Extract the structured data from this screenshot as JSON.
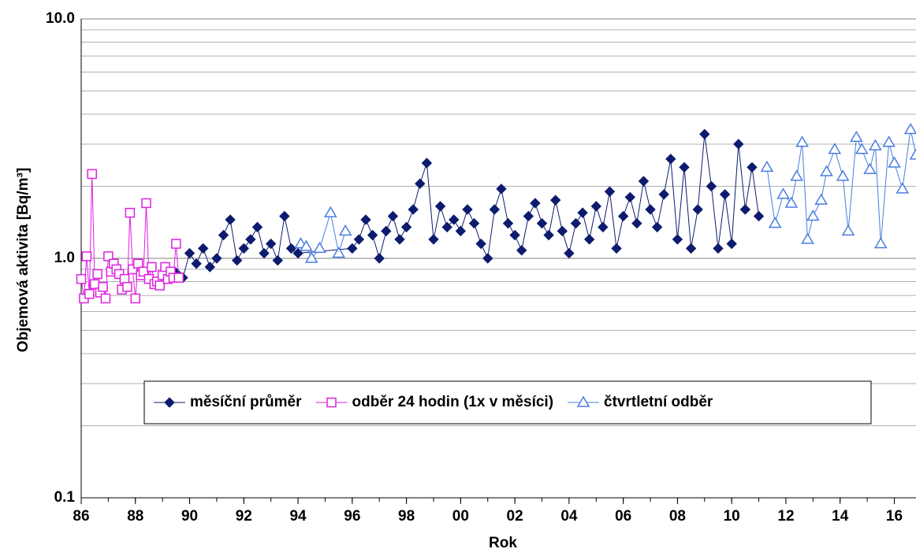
{
  "chart_data": {
    "type": "line",
    "xlabel": "Rok",
    "ylabel": "Objemová aktivita [Bq/m³]",
    "log_y": true,
    "grid": true,
    "xlim": [
      1986,
      2016.8
    ],
    "xticks": [
      {
        "value": 1986,
        "label": "86"
      },
      {
        "value": 1988,
        "label": "88"
      },
      {
        "value": 1990,
        "label": "90"
      },
      {
        "value": 1992,
        "label": "92"
      },
      {
        "value": 1994,
        "label": "94"
      },
      {
        "value": 1996,
        "label": "96"
      },
      {
        "value": 1998,
        "label": "98"
      },
      {
        "value": 2000,
        "label": "00"
      },
      {
        "value": 2002,
        "label": "02"
      },
      {
        "value": 2004,
        "label": "04"
      },
      {
        "value": 2006,
        "label": "06"
      },
      {
        "value": 2008,
        "label": "08"
      },
      {
        "value": 2010,
        "label": "10"
      },
      {
        "value": 2012,
        "label": "12"
      },
      {
        "value": 2014,
        "label": "14"
      },
      {
        "value": 2016,
        "label": "16"
      }
    ],
    "ylim": [
      0.1,
      10
    ],
    "yticks": [
      0.1,
      {
        "value": 1,
        "label": "1.0"
      },
      {
        "value": 10,
        "label": "10.0"
      }
    ],
    "series": [
      {
        "name": "měsíční průměr",
        "color": "#0d1b6e",
        "marker": "diamond",
        "x": [
          1989.5,
          1989.75,
          1990,
          1990.25,
          1990.5,
          1990.75,
          1991,
          1991.25,
          1991.5,
          1991.75,
          1992,
          1992.25,
          1992.5,
          1992.75,
          1993,
          1993.25,
          1993.5,
          1993.75,
          1994,
          1996,
          1996.25,
          1996.5,
          1996.75,
          1997,
          1997.25,
          1997.5,
          1997.75,
          1998,
          1998.25,
          1998.5,
          1998.75,
          1999,
          1999.25,
          1999.5,
          1999.75,
          2000,
          2000.25,
          2000.5,
          2000.75,
          2001,
          2001.25,
          2001.5,
          2001.75,
          2002,
          2002.25,
          2002.5,
          2002.75,
          2003,
          2003.25,
          2003.5,
          2003.75,
          2004,
          2004.25,
          2004.5,
          2004.75,
          2005,
          2005.25,
          2005.5,
          2005.75,
          2006,
          2006.25,
          2006.5,
          2006.75,
          2007,
          2007.25,
          2007.5,
          2007.75,
          2008,
          2008.25,
          2008.5,
          2008.75,
          2009,
          2009.25,
          2009.5,
          2009.75,
          2010,
          2010.25,
          2010.5,
          2010.75,
          2011
        ],
        "values": [
          0.87,
          0.83,
          1.05,
          0.95,
          1.1,
          0.92,
          1.0,
          1.25,
          1.45,
          0.98,
          1.1,
          1.2,
          1.35,
          1.05,
          1.15,
          0.98,
          1.5,
          1.1,
          1.05,
          1.1,
          1.2,
          1.45,
          1.25,
          1.0,
          1.3,
          1.5,
          1.2,
          1.35,
          1.6,
          2.05,
          2.5,
          1.2,
          1.65,
          1.35,
          1.45,
          1.3,
          1.6,
          1.4,
          1.15,
          1.0,
          1.6,
          1.95,
          1.4,
          1.25,
          1.08,
          1.5,
          1.7,
          1.4,
          1.25,
          1.75,
          1.3,
          1.05,
          1.4,
          1.55,
          1.2,
          1.65,
          1.35,
          1.9,
          1.1,
          1.5,
          1.8,
          1.4,
          2.1,
          1.6,
          1.35,
          1.85,
          2.6,
          1.2,
          2.4,
          1.1,
          1.6,
          3.3,
          2.0,
          1.1,
          1.85,
          1.15,
          3.0,
          1.6,
          2.4,
          1.5
        ]
      },
      {
        "name": "odběr 24 hodin (1x v měsíci)",
        "color": "#e020e0",
        "marker": "square",
        "x": [
          1986,
          1986.1,
          1986.2,
          1986.3,
          1986.4,
          1986.5,
          1986.6,
          1986.7,
          1986.8,
          1986.9,
          1987,
          1987.1,
          1987.2,
          1987.3,
          1987.4,
          1987.5,
          1987.6,
          1987.7,
          1987.8,
          1987.9,
          1988,
          1988.1,
          1988.2,
          1988.3,
          1988.4,
          1988.5,
          1988.6,
          1988.7,
          1988.8,
          1988.9,
          1989,
          1989.1,
          1989.2,
          1989.3,
          1989.4,
          1989.5,
          1989.6
        ],
        "values": [
          0.82,
          0.68,
          1.02,
          0.71,
          2.25,
          0.78,
          0.86,
          0.72,
          0.76,
          0.68,
          1.02,
          0.88,
          0.95,
          0.9,
          0.86,
          0.74,
          0.82,
          0.76,
          1.55,
          0.9,
          0.68,
          0.95,
          0.85,
          0.88,
          1.7,
          0.82,
          0.92,
          0.78,
          0.8,
          0.77,
          0.85,
          0.92,
          0.82,
          0.88,
          0.83,
          1.15,
          0.83
        ]
      },
      {
        "name": "čtvrtletní odběr",
        "color": "#4a7de0",
        "marker": "triangle",
        "x": [
          1994.1,
          1994.3,
          1994.5,
          1994.8,
          1995.2,
          1995.5,
          1995.75,
          2003,
          2011.3,
          2011.6,
          2011.9,
          2012.2,
          2012.4,
          2012.6,
          2012.8,
          2013,
          2013.3,
          2013.5,
          2013.8,
          2014.1,
          2014.3,
          2014.6,
          2014.8,
          2015.1,
          2015.3,
          2015.5,
          2015.8,
          2016,
          2016.3,
          2016.6,
          2016.8
        ],
        "values": [
          1.15,
          1.12,
          1.0,
          1.1,
          1.55,
          1.05,
          1.3,
          null,
          2.4,
          1.4,
          1.85,
          1.7,
          2.2,
          3.05,
          1.2,
          1.5,
          1.75,
          2.3,
          2.85,
          2.2,
          1.3,
          3.2,
          2.85,
          2.35,
          2.95,
          1.15,
          3.05,
          2.5,
          1.95,
          3.45,
          2.7
        ]
      }
    ]
  }
}
